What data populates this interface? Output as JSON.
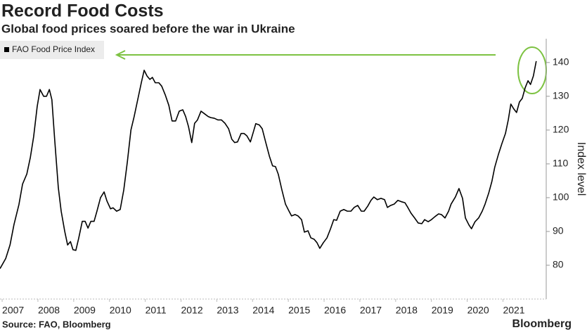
{
  "chart_data": {
    "type": "line",
    "title": "Record Food Costs",
    "subtitle": "Global food prices soared before the war in Ukraine",
    "y_label": "Index level",
    "source": "Source: FAO, Bloomberg",
    "brand": "Bloomberg",
    "legend": "top-left",
    "grid": false,
    "x": [
      2006.94,
      2007.1,
      2007.22,
      2007.33,
      2007.47,
      2007.57,
      2007.69,
      2007.79,
      2007.88,
      2007.98,
      2008.06,
      2008.16,
      2008.24,
      2008.32,
      2008.39,
      2008.47,
      2008.57,
      2008.65,
      2008.75,
      2008.83,
      2008.91,
      2008.98,
      2009.06,
      2009.14,
      2009.24,
      2009.32,
      2009.4,
      2009.48,
      2009.57,
      2009.65,
      2009.75,
      2009.85,
      2009.93,
      2010.03,
      2010.1,
      2010.2,
      2010.3,
      2010.4,
      2010.5,
      2010.6,
      2010.69,
      2010.79,
      2010.89,
      2010.97,
      2011.05,
      2011.13,
      2011.2,
      2011.28,
      2011.38,
      2011.46,
      2011.56,
      2011.66,
      2011.75,
      2011.85,
      2011.95,
      2012.05,
      2012.13,
      2012.21,
      2012.3,
      2012.38,
      2012.46,
      2012.56,
      2012.66,
      2012.76,
      2012.83,
      2012.93,
      2013.03,
      2013.13,
      2013.23,
      2013.33,
      2013.42,
      2013.5,
      2013.58,
      2013.68,
      2013.76,
      2013.84,
      2013.94,
      2014.01,
      2014.09,
      2014.19,
      2014.27,
      2014.37,
      2014.47,
      2014.56,
      2014.64,
      2014.72,
      2014.82,
      2014.92,
      2015.02,
      2015.09,
      2015.19,
      2015.27,
      2015.37,
      2015.45,
      2015.55,
      2015.63,
      2015.72,
      2015.8,
      2015.88,
      2015.98,
      2016.08,
      2016.18,
      2016.27,
      2016.35,
      2016.45,
      2016.55,
      2016.65,
      2016.75,
      2016.84,
      2016.94,
      2017.04,
      2017.12,
      2017.22,
      2017.31,
      2017.39,
      2017.49,
      2017.59,
      2017.69,
      2017.77,
      2017.86,
      2017.96,
      2018.06,
      2018.16,
      2018.26,
      2018.34,
      2018.43,
      2018.53,
      2018.63,
      2018.73,
      2018.81,
      2018.91,
      2019.0,
      2019.1,
      2019.2,
      2019.28,
      2019.38,
      2019.48,
      2019.55,
      2019.67,
      2019.77,
      2019.87,
      2019.95,
      2020.05,
      2020.12,
      2020.22,
      2020.32,
      2020.42,
      2020.5,
      2020.6,
      2020.69,
      2020.77,
      2020.87,
      2020.97,
      2021.07,
      2021.15,
      2021.22,
      2021.3,
      2021.38,
      2021.46,
      2021.54,
      2021.62,
      2021.7,
      2021.77,
      2021.85,
      2021.93
    ],
    "series": [
      {
        "name": "FAO Food Price Index",
        "color": "#000000",
        "values": [
          79,
          82,
          86,
          92,
          98,
          104,
          107,
          112,
          118,
          127,
          132,
          130,
          130,
          132,
          129,
          117,
          103,
          96,
          90,
          86,
          87,
          84.6,
          84.4,
          88,
          93,
          93,
          91,
          93,
          93,
          96,
          100,
          101.7,
          99,
          96.7,
          97,
          96,
          96.5,
          102.3,
          110.6,
          120,
          124,
          129,
          134,
          137.7,
          136,
          135,
          135.6,
          134,
          134,
          133,
          130.4,
          127.3,
          122.7,
          122.7,
          125.6,
          126,
          124,
          121,
          116.3,
          122,
          123,
          125.6,
          124.8,
          124,
          123.7,
          123.5,
          123,
          123,
          122,
          120.4,
          117.3,
          116.3,
          116.5,
          119,
          119,
          118.3,
          116.5,
          119,
          121.9,
          121.5,
          120.4,
          116.3,
          112.3,
          109.4,
          109.2,
          106.9,
          102.3,
          98.1,
          96,
          94.6,
          95,
          94.6,
          93.5,
          89.8,
          90.2,
          88.1,
          87.7,
          86.7,
          85,
          86.7,
          88.1,
          90.8,
          93.5,
          93.3,
          96,
          96.5,
          96,
          96,
          97.1,
          97.7,
          96,
          96,
          97.5,
          99.2,
          100.2,
          99.4,
          99.8,
          99.4,
          97.1,
          97.7,
          98.1,
          99.2,
          98.8,
          98.5,
          97.1,
          95.4,
          94,
          92.5,
          92.3,
          93.5,
          92.9,
          93.5,
          94.4,
          95.2,
          95,
          94,
          96,
          98.1,
          100.2,
          102.7,
          99.8,
          94,
          91.9,
          90.8,
          92.9,
          94,
          96,
          98.1,
          101.3,
          104.8,
          109,
          112.7,
          116,
          119,
          123.1,
          127.7,
          126.3,
          125.2,
          128.3,
          129.4,
          132.5,
          134.6,
          133.5,
          136,
          140.4
        ]
      }
    ],
    "xlim": [
      2006.94,
      2022.17
    ],
    "xticks": [
      2007,
      2008,
      2009,
      2010,
      2011,
      2012,
      2013,
      2014,
      2015,
      2016,
      2017,
      2018,
      2019,
      2020,
      2021
    ],
    "ylim": [
      70,
      146
    ],
    "yticks": [
      80,
      90,
      100,
      110,
      120,
      130,
      140
    ]
  }
}
